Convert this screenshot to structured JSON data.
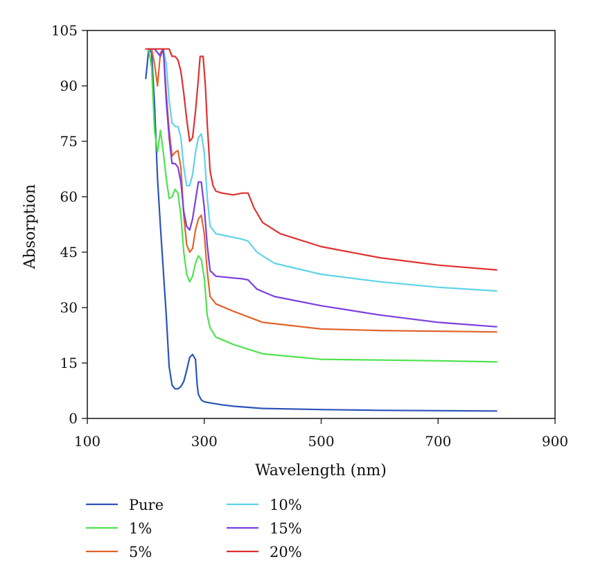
{
  "chart_data": {
    "type": "line",
    "title": "",
    "xlabel": "Wavelength (nm)",
    "ylabel": "Absorption",
    "xlim": [
      100,
      900
    ],
    "ylim": [
      0,
      105
    ],
    "x_ticks": [
      100,
      300,
      500,
      700,
      900
    ],
    "y_ticks": [
      0,
      15,
      30,
      45,
      60,
      75,
      90,
      105
    ],
    "grid": false,
    "legend_position": "bottom-left",
    "series": [
      {
        "name": "Pure",
        "color": "#2b54b8",
        "points": [
          [
            200,
            92
          ],
          [
            205,
            100
          ],
          [
            210,
            99
          ],
          [
            215,
            85
          ],
          [
            220,
            65
          ],
          [
            225,
            52
          ],
          [
            230,
            40
          ],
          [
            235,
            28
          ],
          [
            240,
            14
          ],
          [
            245,
            9
          ],
          [
            250,
            8
          ],
          [
            255,
            8
          ],
          [
            260,
            8.6
          ],
          [
            265,
            10
          ],
          [
            270,
            13
          ],
          [
            275,
            16.5
          ],
          [
            280,
            17.3
          ],
          [
            285,
            16
          ],
          [
            288,
            9
          ],
          [
            290,
            6.5
          ],
          [
            295,
            5
          ],
          [
            300,
            4.5
          ],
          [
            310,
            4.2
          ],
          [
            330,
            3.7
          ],
          [
            350,
            3.3
          ],
          [
            400,
            2.7
          ],
          [
            500,
            2.4
          ],
          [
            600,
            2.2
          ],
          [
            700,
            2.1
          ],
          [
            800,
            2.0
          ]
        ]
      },
      {
        "name": "1%",
        "color": "#4ee24e",
        "points": [
          [
            205,
            100
          ],
          [
            210,
            95
          ],
          [
            215,
            78
          ],
          [
            220,
            72
          ],
          [
            225,
            78
          ],
          [
            230,
            72
          ],
          [
            235,
            65
          ],
          [
            240,
            59.5
          ],
          [
            245,
            60
          ],
          [
            250,
            62
          ],
          [
            255,
            61
          ],
          [
            260,
            55
          ],
          [
            265,
            45
          ],
          [
            270,
            39
          ],
          [
            275,
            37
          ],
          [
            280,
            38.5
          ],
          [
            285,
            42
          ],
          [
            290,
            44
          ],
          [
            295,
            43
          ],
          [
            300,
            38
          ],
          [
            305,
            28
          ],
          [
            310,
            24.5
          ],
          [
            320,
            22
          ],
          [
            350,
            20
          ],
          [
            400,
            17.5
          ],
          [
            500,
            16
          ],
          [
            600,
            15.8
          ],
          [
            700,
            15.6
          ],
          [
            800,
            15.3
          ]
        ]
      },
      {
        "name": "5%",
        "color": "#e0642c",
        "points": [
          [
            205,
            100
          ],
          [
            210,
            100
          ],
          [
            215,
            96
          ],
          [
            220,
            90
          ],
          [
            225,
            99
          ],
          [
            230,
            100
          ],
          [
            235,
            88
          ],
          [
            240,
            78
          ],
          [
            245,
            71
          ],
          [
            250,
            72
          ],
          [
            255,
            72.5
          ],
          [
            260,
            68
          ],
          [
            265,
            55
          ],
          [
            270,
            47
          ],
          [
            275,
            45
          ],
          [
            280,
            46
          ],
          [
            285,
            51
          ],
          [
            290,
            54
          ],
          [
            295,
            55
          ],
          [
            300,
            50
          ],
          [
            305,
            40
          ],
          [
            310,
            33
          ],
          [
            320,
            31
          ],
          [
            350,
            29
          ],
          [
            400,
            26
          ],
          [
            500,
            24.2
          ],
          [
            600,
            23.8
          ],
          [
            700,
            23.6
          ],
          [
            800,
            23.4
          ]
        ]
      },
      {
        "name": "10%",
        "color": "#5fd3e8",
        "points": [
          [
            205,
            100
          ],
          [
            210,
            100
          ],
          [
            215,
            100
          ],
          [
            220,
            100
          ],
          [
            230,
            100
          ],
          [
            235,
            96
          ],
          [
            240,
            86
          ],
          [
            245,
            80
          ],
          [
            250,
            79
          ],
          [
            255,
            79
          ],
          [
            260,
            76
          ],
          [
            265,
            68
          ],
          [
            270,
            63
          ],
          [
            275,
            63
          ],
          [
            280,
            66
          ],
          [
            285,
            72
          ],
          [
            290,
            76
          ],
          [
            295,
            77
          ],
          [
            300,
            72
          ],
          [
            305,
            60
          ],
          [
            310,
            52
          ],
          [
            320,
            50
          ],
          [
            350,
            49
          ],
          [
            365,
            48.5
          ],
          [
            375,
            48
          ],
          [
            390,
            45
          ],
          [
            420,
            42
          ],
          [
            500,
            39
          ],
          [
            600,
            37
          ],
          [
            700,
            35.5
          ],
          [
            800,
            34.5
          ]
        ]
      },
      {
        "name": "15%",
        "color": "#7a3ee0",
        "points": [
          [
            205,
            100
          ],
          [
            210,
            100
          ],
          [
            215,
            100
          ],
          [
            220,
            99
          ],
          [
            225,
            98
          ],
          [
            230,
            100
          ],
          [
            235,
            86
          ],
          [
            240,
            76
          ],
          [
            245,
            69
          ],
          [
            250,
            69
          ],
          [
            255,
            68
          ],
          [
            260,
            64
          ],
          [
            265,
            56
          ],
          [
            270,
            52
          ],
          [
            275,
            51
          ],
          [
            280,
            54
          ],
          [
            285,
            59
          ],
          [
            290,
            64
          ],
          [
            295,
            64
          ],
          [
            300,
            57
          ],
          [
            305,
            47
          ],
          [
            310,
            40
          ],
          [
            320,
            38.5
          ],
          [
            350,
            38
          ],
          [
            365,
            37.8
          ],
          [
            375,
            37.5
          ],
          [
            390,
            35
          ],
          [
            420,
            33
          ],
          [
            500,
            30.5
          ],
          [
            600,
            28
          ],
          [
            700,
            26
          ],
          [
            800,
            24.8
          ]
        ]
      },
      {
        "name": "20%",
        "color": "#e03030",
        "points": [
          [
            200,
            100
          ],
          [
            210,
            100
          ],
          [
            220,
            100
          ],
          [
            230,
            100
          ],
          [
            240,
            100
          ],
          [
            245,
            98
          ],
          [
            250,
            98
          ],
          [
            255,
            97
          ],
          [
            260,
            94
          ],
          [
            265,
            88
          ],
          [
            270,
            81
          ],
          [
            275,
            75
          ],
          [
            280,
            76
          ],
          [
            285,
            83
          ],
          [
            290,
            92
          ],
          [
            293,
            98
          ],
          [
            298,
            98
          ],
          [
            302,
            90
          ],
          [
            305,
            80
          ],
          [
            310,
            67
          ],
          [
            315,
            63
          ],
          [
            320,
            61.5
          ],
          [
            330,
            61
          ],
          [
            350,
            60.5
          ],
          [
            365,
            61
          ],
          [
            375,
            61
          ],
          [
            385,
            57
          ],
          [
            400,
            53
          ],
          [
            430,
            50
          ],
          [
            500,
            46.5
          ],
          [
            600,
            43.5
          ],
          [
            700,
            41.5
          ],
          [
            800,
            40.2
          ]
        ]
      }
    ]
  }
}
